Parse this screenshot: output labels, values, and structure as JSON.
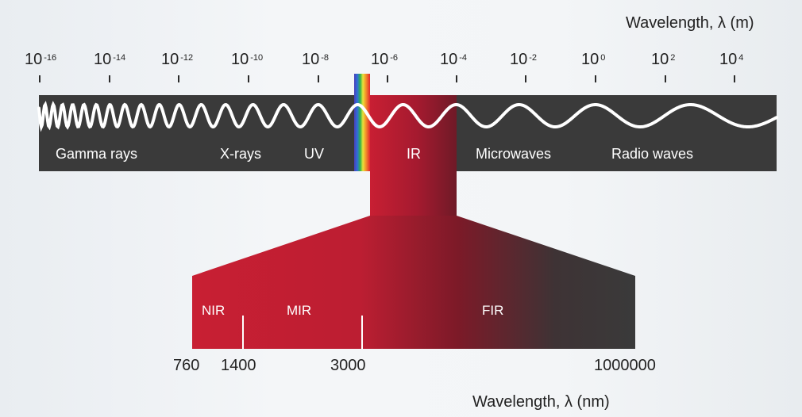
{
  "top_axis": {
    "title": "Wavelength, λ (m)",
    "labels": [
      {
        "base": "10",
        "exp": "-16"
      },
      {
        "base": "10",
        "exp": "-14"
      },
      {
        "base": "10",
        "exp": "-12"
      },
      {
        "base": "10",
        "exp": "-10"
      },
      {
        "base": "10",
        "exp": "-8"
      },
      {
        "base": "10",
        "exp": "-6"
      },
      {
        "base": "10",
        "exp": "-4"
      },
      {
        "base": "10",
        "exp": "-2"
      },
      {
        "base": "10",
        "exp": "0"
      },
      {
        "base": "10",
        "exp": "2"
      },
      {
        "base": "10",
        "exp": "4"
      }
    ]
  },
  "spectrum_bands": [
    "Gamma rays",
    "X-rays",
    "UV",
    "IR",
    "Microwaves",
    "Radio waves"
  ],
  "ir_zoom": {
    "bands": [
      "NIR",
      "MIR",
      "FIR"
    ],
    "tick_labels": [
      "760",
      "1400",
      "3000",
      "1000000"
    ],
    "axis_title": "Wavelength, λ (nm)"
  },
  "colors": {
    "band_background": "#3a3a3a",
    "ir_red": "#c41f33",
    "dark_red": "#7a1524",
    "wave": "#ffffff"
  }
}
